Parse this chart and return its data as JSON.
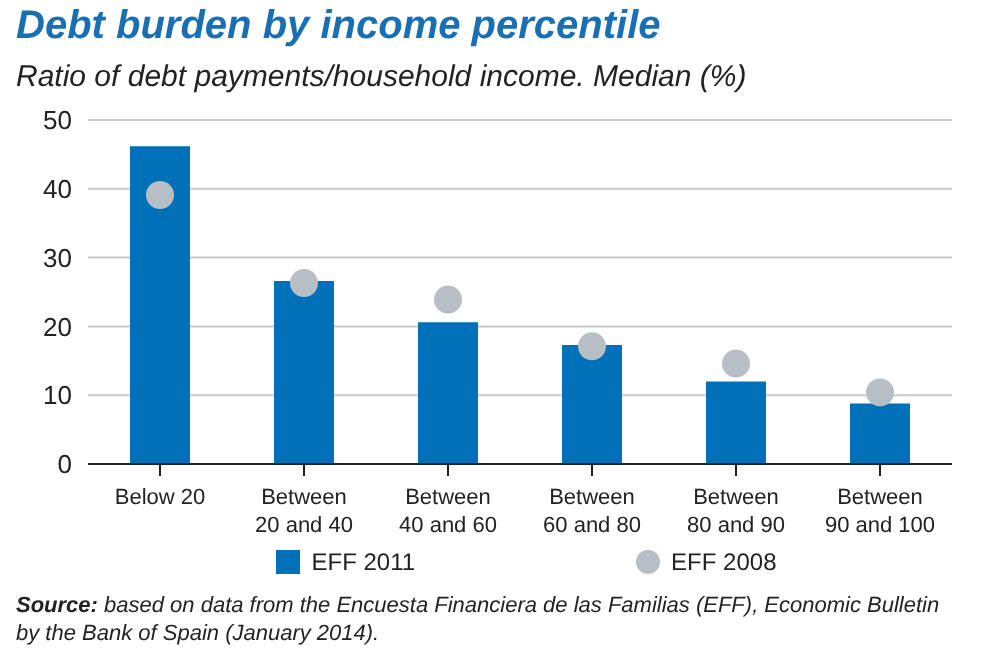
{
  "chart_data": {
    "type": "bar",
    "title": "Debt burden by income percentile",
    "subtitle": "Ratio of debt payments/household income. Median (%)",
    "categories": [
      "Below 20",
      "Between\n20 and 40",
      "Between\n40 and 60",
      "Between\n60 and 80",
      "Between\n80 and 90",
      "Between\n90 and 100"
    ],
    "series": [
      {
        "name": "EFF 2011",
        "color": "#0070b8",
        "values": [
          46.2,
          26.6,
          20.6,
          17.3,
          12.0,
          8.8
        ]
      },
      {
        "name": "EFF 2008",
        "type": "scatter",
        "color": "#b6bfc3",
        "marker": "circle",
        "values": [
          39.1,
          26.3,
          23.9,
          17.1,
          14.6,
          10.4
        ]
      }
    ],
    "ylim": [
      0,
      50
    ],
    "yticks": [
      0,
      10,
      20,
      30,
      40,
      50
    ],
    "grid": "y",
    "legend": "bottom",
    "annotations": [
      "Source: based on data from the Encuesta Financiera de las Familias (EFF), Economic Bulletin by the Bank of Spain (January 2014)."
    ]
  }
}
